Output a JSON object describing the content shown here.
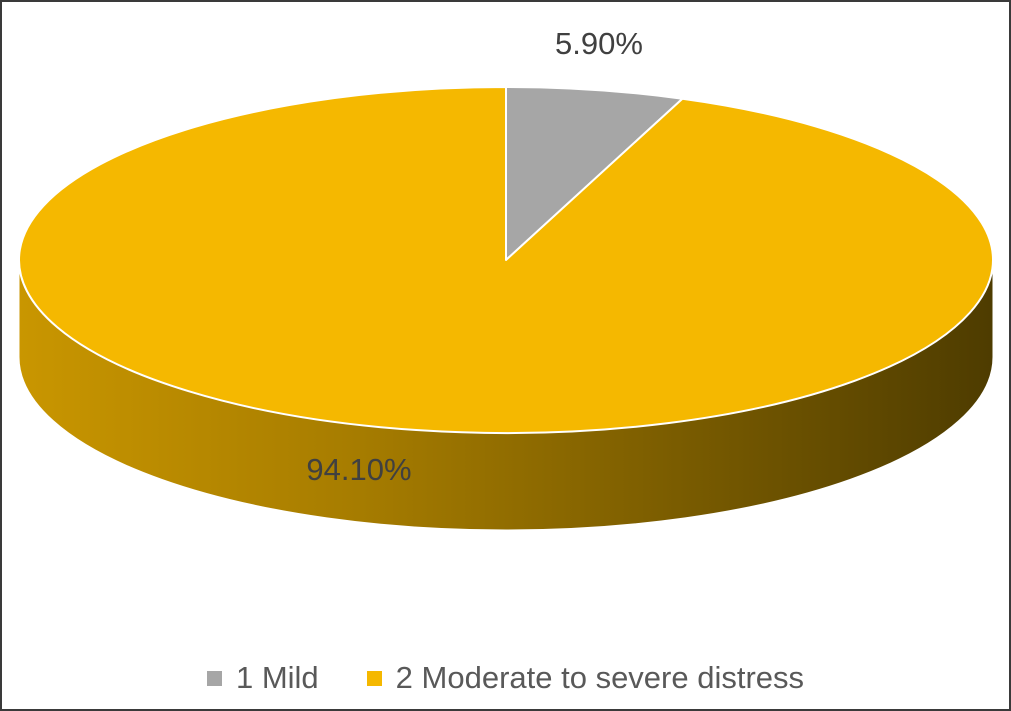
{
  "chart_data": {
    "type": "pie",
    "style": "3d",
    "title": "",
    "categories": [
      "1 Mild",
      "2 Moderate to severe distress"
    ],
    "values": [
      5.9,
      94.1
    ],
    "labels": [
      "5.90%",
      "94.10%"
    ],
    "colors": [
      "#a6a6a6",
      "#f5b800"
    ],
    "legend_position": "bottom"
  }
}
